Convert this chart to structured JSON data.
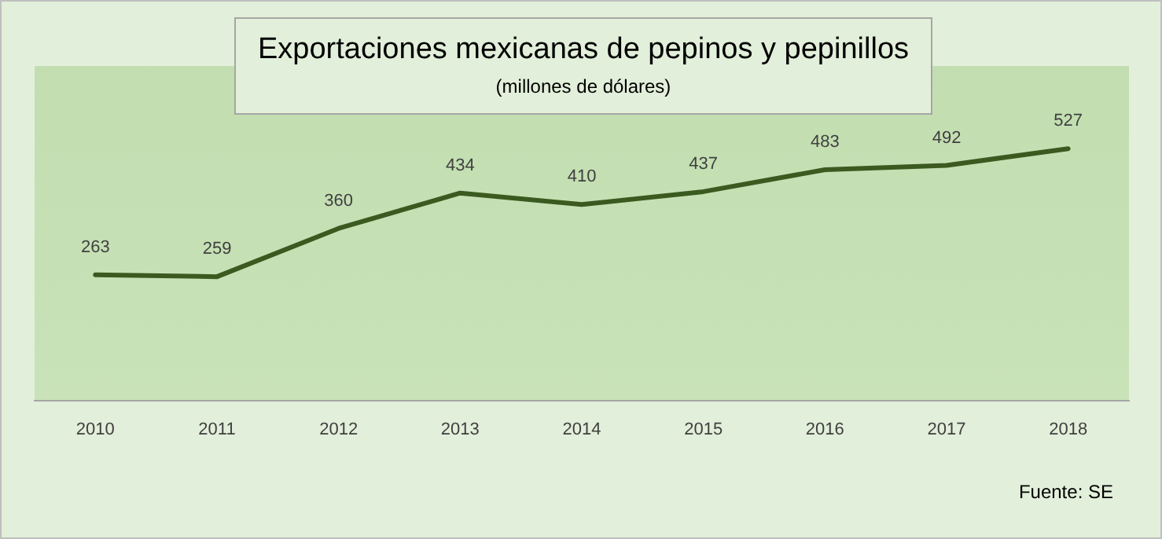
{
  "chart_data": {
    "type": "line",
    "title": "Exportaciones mexicanas de pepinos y pepinillos",
    "subtitle": "(millones de dólares)",
    "categories": [
      "2010",
      "2011",
      "2012",
      "2013",
      "2014",
      "2015",
      "2016",
      "2017",
      "2018"
    ],
    "series": [
      {
        "color": "#3a5a1f",
        "values": [
          263,
          259,
          360,
          434,
          410,
          437,
          483,
          492,
          527
        ]
      }
    ],
    "ylim": [
      0,
      700
    ],
    "tick_labels": "x",
    "grid": false,
    "legend": false,
    "marker": "none",
    "line_style": "solid",
    "data_labels": true,
    "annotations": [
      "Fuente: SE"
    ]
  }
}
